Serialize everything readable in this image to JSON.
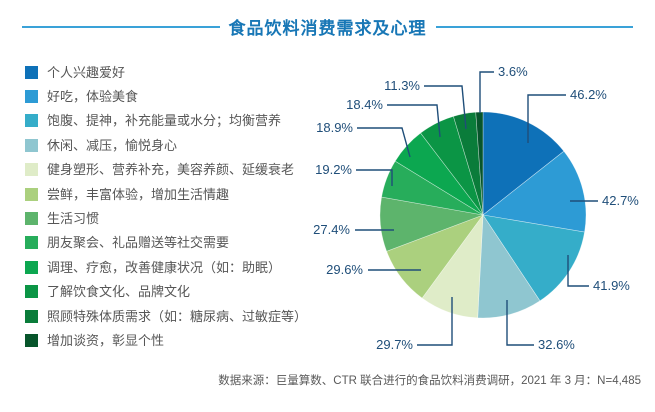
{
  "title": "食品饮料消费需求及心理",
  "source": "数据来源：巨量算数、CTR 联合进行的食品饮料消费调研，2021 年 3 月：N=4,485",
  "colors": {
    "title_text": "#1877b6",
    "title_rule": "#3aa2d8",
    "pct_label": "#1f4e79",
    "leader_line": "#1f4e79",
    "legend_text": "#565656",
    "source_text": "#595959",
    "background": "#ffffff"
  },
  "chart_data": {
    "type": "pie",
    "title": "食品饮料消费需求及心理",
    "legend_position": "left",
    "start_angle": "top",
    "direction": "clockwise",
    "note": "多选题百分比（合计321.5%），扇区角度按各值占总和比例绘制",
    "categories": [
      "个人兴趣爱好",
      "好吃，体验美食",
      "饱腹、提神，补充能量或水分；均衡营养",
      "休闲、减压，愉悦身心",
      "健身塑形、营养补充，美容养颜、延缓衰老",
      "尝鲜，丰富体验，增加生活情趣",
      "生活习惯",
      "朋友聚会、礼品赠送等社交需要",
      "调理、疗愈，改善健康状况（如：助眠）",
      "了解饮食文化、品牌文化",
      "照顾特殊体质需求（如：糖尿病、过敏症等）",
      "增加谈资，彰显个性"
    ],
    "values": [
      46.2,
      42.7,
      41.9,
      32.6,
      29.7,
      29.6,
      27.4,
      19.2,
      18.9,
      18.4,
      11.3,
      3.6
    ],
    "labels": [
      "46.2%",
      "42.7%",
      "41.9%",
      "32.6%",
      "29.7%",
      "29.6%",
      "27.4%",
      "19.2%",
      "18.9%",
      "18.4%",
      "11.3%",
      "3.6%"
    ],
    "slice_colors": [
      "#0e71b8",
      "#2d9bd5",
      "#35adc9",
      "#8fc6d0",
      "#dfecc8",
      "#abd07e",
      "#5db46c",
      "#27ad5b",
      "#0ca750",
      "#0b9545",
      "#0a7c3a",
      "#07552b"
    ]
  }
}
